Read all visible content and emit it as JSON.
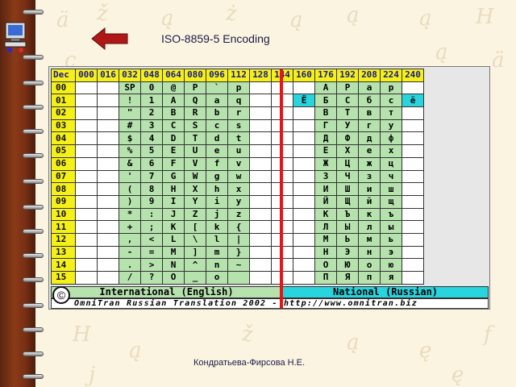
{
  "slide": {
    "title": "ISO-8859-5 Encoding",
    "author": "Кондратьева-Фирсова Н.Е."
  },
  "colors": {
    "header_yellow": "#f4f018",
    "international_green": "#b6e2ae",
    "national_cyan": "#28d4de",
    "divider_red": "#ee1111",
    "spine": "#7a3014"
  },
  "icons": [
    "computer-icon",
    "back-arrow-icon",
    "copyright-icon"
  ],
  "table": {
    "corner": "Dec",
    "columns": [
      "000",
      "016",
      "032",
      "048",
      "064",
      "080",
      "096",
      "112",
      "128",
      "144",
      "160",
      "176",
      "192",
      "208",
      "224",
      "240"
    ],
    "rows": [
      {
        "label": "00",
        "cells": [
          "",
          "",
          "SP",
          "0",
          "@",
          "P",
          "`",
          "p",
          "",
          "",
          "",
          "А",
          "Р",
          "а",
          "р",
          ""
        ]
      },
      {
        "label": "01",
        "cells": [
          "",
          "",
          "!",
          "1",
          "A",
          "Q",
          "a",
          "q",
          "",
          "",
          "Ё",
          "Б",
          "С",
          "б",
          "с",
          "ё"
        ]
      },
      {
        "label": "02",
        "cells": [
          "",
          "",
          "\"",
          "2",
          "B",
          "R",
          "b",
          "r",
          "",
          "",
          "",
          "В",
          "Т",
          "в",
          "т",
          ""
        ]
      },
      {
        "label": "03",
        "cells": [
          "",
          "",
          "#",
          "3",
          "C",
          "S",
          "c",
          "s",
          "",
          "",
          "",
          "Г",
          "У",
          "г",
          "у",
          ""
        ]
      },
      {
        "label": "04",
        "cells": [
          "",
          "",
          "$",
          "4",
          "D",
          "T",
          "d",
          "t",
          "",
          "",
          "",
          "Д",
          "Ф",
          "д",
          "ф",
          ""
        ]
      },
      {
        "label": "05",
        "cells": [
          "",
          "",
          "%",
          "5",
          "E",
          "U",
          "e",
          "u",
          "",
          "",
          "",
          "Е",
          "Х",
          "е",
          "х",
          ""
        ]
      },
      {
        "label": "06",
        "cells": [
          "",
          "",
          "&",
          "6",
          "F",
          "V",
          "f",
          "v",
          "",
          "",
          "",
          "Ж",
          "Ц",
          "ж",
          "ц",
          ""
        ]
      },
      {
        "label": "07",
        "cells": [
          "",
          "",
          "'",
          "7",
          "G",
          "W",
          "g",
          "w",
          "",
          "",
          "",
          "З",
          "Ч",
          "з",
          "ч",
          ""
        ]
      },
      {
        "label": "08",
        "cells": [
          "",
          "",
          "(",
          "8",
          "H",
          "X",
          "h",
          "x",
          "",
          "",
          "",
          "И",
          "Ш",
          "и",
          "ш",
          ""
        ]
      },
      {
        "label": "09",
        "cells": [
          "",
          "",
          ")",
          "9",
          "I",
          "Y",
          "i",
          "y",
          "",
          "",
          "",
          "Й",
          "Щ",
          "й",
          "щ",
          ""
        ]
      },
      {
        "label": "10",
        "cells": [
          "",
          "",
          "*",
          ":",
          "J",
          "Z",
          "j",
          "z",
          "",
          "",
          "",
          "К",
          "Ъ",
          "к",
          "ъ",
          ""
        ]
      },
      {
        "label": "11",
        "cells": [
          "",
          "",
          "+",
          ";",
          "K",
          "[",
          "k",
          "{",
          "",
          "",
          "",
          "Л",
          "Ы",
          "л",
          "ы",
          ""
        ]
      },
      {
        "label": "12",
        "cells": [
          "",
          "",
          ",",
          "<",
          "L",
          "\\",
          "l",
          "|",
          "",
          "",
          "",
          "М",
          "Ь",
          "м",
          "ь",
          ""
        ]
      },
      {
        "label": "13",
        "cells": [
          "",
          "",
          "-",
          "=",
          "M",
          "]",
          "m",
          "}",
          "",
          "",
          "",
          "Н",
          "Э",
          "н",
          "э",
          ""
        ]
      },
      {
        "label": "14",
        "cells": [
          "",
          "",
          ".",
          ">",
          "N",
          "^",
          "n",
          "~",
          "",
          "",
          "",
          "О",
          "Ю",
          "о",
          "ю",
          ""
        ]
      },
      {
        "label": "15",
        "cells": [
          "",
          "",
          "/",
          "?",
          "O",
          "_",
          "o",
          "",
          "",
          "",
          "",
          "П",
          "Я",
          "п",
          "я",
          ""
        ]
      }
    ],
    "footer_international": "International (English)",
    "footer_national": "National (Russian)",
    "copyright_symbol": "©",
    "credit": "OmniTran Russian Translation 2002 - http://www.omnitran.biz"
  }
}
